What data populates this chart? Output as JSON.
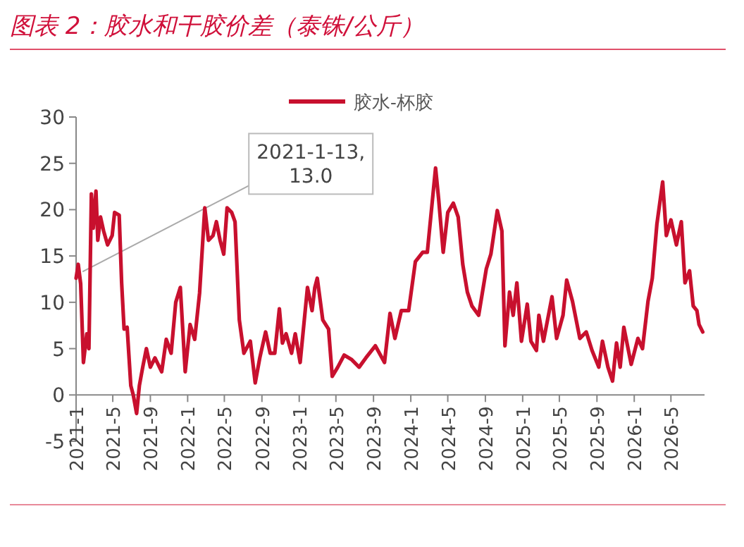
{
  "chart_data": {
    "type": "line",
    "title": "图表 2：胶水和干胶价差（泰铢/公斤）",
    "legend": "top",
    "xlim": [
      "2021-01-01",
      "2026-08-19"
    ],
    "ylim": [
      -5,
      30
    ],
    "yticks": [
      -5,
      0,
      5,
      10,
      15,
      20,
      25,
      30
    ],
    "xticks": [
      {
        "value": "2021-01",
        "label": "2021-1"
      },
      {
        "value": "2021-05",
        "label": "2021-5"
      },
      {
        "value": "2021-09",
        "label": "2021-9"
      },
      {
        "value": "2022-01",
        "label": "2022-1"
      },
      {
        "value": "2022-05",
        "label": "2022-5"
      },
      {
        "value": "2022-09",
        "label": "2022-9"
      },
      {
        "value": "2023-01",
        "label": "2023-1"
      },
      {
        "value": "2023-05",
        "label": "2023-5"
      },
      {
        "value": "2023-09",
        "label": "2023-9"
      },
      {
        "value": "2024-01",
        "label": "2024-1"
      },
      {
        "value": "2024-05",
        "label": "2024-5"
      },
      {
        "value": "2024-09",
        "label": "2024-9"
      },
      {
        "value": "2025-01",
        "label": "2025-1"
      },
      {
        "value": "2025-05",
        "label": "2025-5"
      },
      {
        "value": "2025-09",
        "label": "2025-9"
      },
      {
        "value": "2026-01",
        "label": "2026-1"
      },
      {
        "value": "2026-05",
        "label": "2026-5"
      }
    ],
    "annotations": [
      {
        "text": "2021-1-13, 13.0",
        "x": "2021-01-13",
        "y": 13
      }
    ],
    "x": [
      "2021-01-01",
      "2021-01-08",
      "2021-01-16",
      "2021-01-25",
      "2021-02-05",
      "2021-02-12",
      "2021-02-20",
      "2021-02-26",
      "2021-03-07",
      "2021-03-13",
      "2021-03-22",
      "2021-04-01",
      "2021-04-14",
      "2021-04-29",
      "2021-05-07",
      "2021-05-22",
      "2021-05-30",
      "2021-06-07",
      "2021-06-17",
      "2021-06-29",
      "2021-07-07",
      "2021-07-18",
      "2021-07-27",
      "2021-08-07",
      "2021-08-19",
      "2021-09-01",
      "2021-09-16",
      "2021-10-08",
      "2021-10-23",
      "2021-11-08",
      "2021-11-23",
      "2021-12-08",
      "2021-12-24",
      "2022-01-09",
      "2022-01-24",
      "2022-02-09",
      "2022-02-26",
      "2022-03-10",
      "2022-03-25",
      "2022-04-05",
      "2022-04-17",
      "2022-04-29",
      "2022-05-10",
      "2022-05-25",
      "2022-06-05",
      "2022-06-19",
      "2022-07-04",
      "2022-07-25",
      "2022-08-10",
      "2022-08-25",
      "2022-09-13",
      "2022-09-28",
      "2022-10-13",
      "2022-10-28",
      "2022-11-07",
      "2022-11-19",
      "2022-12-07",
      "2022-12-19",
      "2023-01-04",
      "2023-01-28",
      "2023-02-12",
      "2023-02-21",
      "2023-03-01",
      "2023-03-19",
      "2023-04-07",
      "2023-04-19",
      "2023-05-07",
      "2023-05-28",
      "2023-06-22",
      "2023-07-16",
      "2023-08-07",
      "2023-09-07",
      "2023-10-07",
      "2023-10-25",
      "2023-11-10",
      "2023-12-01",
      "2023-12-25",
      "2024-01-16",
      "2024-02-09",
      "2024-02-24",
      "2024-03-22",
      "2024-04-01",
      "2024-04-16",
      "2024-05-01",
      "2024-05-19",
      "2024-06-04",
      "2024-06-19",
      "2024-07-04",
      "2024-07-19",
      "2024-08-10",
      "2024-09-04",
      "2024-09-19",
      "2024-10-10",
      "2024-10-25",
      "2024-11-04",
      "2024-11-19",
      "2024-12-01",
      "2024-12-13",
      "2024-12-28",
      "2025-01-16",
      "2025-01-28",
      "2025-02-15",
      "2025-02-23",
      "2025-03-10",
      "2025-04-07",
      "2025-04-22",
      "2025-05-13",
      "2025-05-25",
      "2025-06-13",
      "2025-07-07",
      "2025-07-28",
      "2025-08-16",
      "2025-09-07",
      "2025-09-19",
      "2025-10-07",
      "2025-10-22",
      "2025-11-04",
      "2025-11-16",
      "2025-11-28",
      "2025-12-22",
      "2026-01-13",
      "2026-01-28",
      "2026-02-15",
      "2026-03-01",
      "2026-03-16",
      "2026-04-04",
      "2026-04-16",
      "2026-05-01",
      "2026-05-19",
      "2026-06-04",
      "2026-06-16",
      "2026-07-01",
      "2026-07-13",
      "2026-07-25",
      "2026-08-01",
      "2026-08-13"
    ],
    "series": [
      {
        "name": "胶水-杯胶",
        "color": "#c8102e",
        "values": [
          12.6,
          14.1,
          12,
          3.5,
          6.6,
          5,
          21.7,
          18,
          22,
          16.7,
          19.2,
          17.7,
          16.2,
          17.2,
          19.7,
          19.4,
          12.1,
          7.1,
          7.3,
          1,
          0,
          -2,
          1,
          3,
          5,
          3,
          4,
          2.5,
          6,
          4.5,
          10,
          11.6,
          2.5,
          7.6,
          6,
          11,
          20.2,
          16.7,
          17.2,
          18.7,
          16.7,
          15.2,
          20.2,
          19.7,
          18.7,
          8.1,
          4.5,
          5.8,
          1.3,
          4,
          6.8,
          4.5,
          4.5,
          9.3,
          5.6,
          6.6,
          4.5,
          6.6,
          3.5,
          11.6,
          9.1,
          11.6,
          12.6,
          8.1,
          7.1,
          2,
          3,
          4.3,
          3.8,
          3,
          4,
          5.3,
          3.5,
          8.8,
          6.1,
          9.1,
          9.1,
          14.4,
          15.4,
          15.4,
          24.5,
          21.2,
          15.4,
          19.7,
          20.7,
          19.2,
          14.1,
          11.1,
          9.6,
          8.6,
          13.6,
          15.2,
          19.9,
          17.7,
          5.3,
          11.1,
          8.6,
          12.1,
          5.8,
          9.8,
          5.8,
          4.8,
          8.6,
          5.8,
          10.6,
          6.1,
          8.6,
          12.4,
          10.1,
          6.1,
          6.8,
          4.8,
          3,
          5.8,
          3,
          1.5,
          5.6,
          3,
          7.3,
          3.3,
          6.1,
          5,
          10.1,
          12.6,
          18.4,
          23,
          17.2,
          18.9,
          16.2,
          18.7,
          12.1,
          13.4,
          9.6,
          9.1,
          7.6,
          6.8
        ]
      }
    ]
  }
}
